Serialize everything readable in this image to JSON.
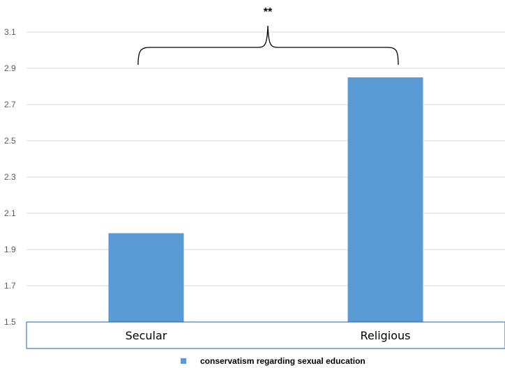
{
  "chart_data": {
    "type": "bar",
    "categories": [
      "Secular",
      "Religious"
    ],
    "series": [
      {
        "name": "conservatism regarding sexual education",
        "values": [
          1.99,
          2.85
        ],
        "color": "#5b9bd5"
      }
    ],
    "ylim": [
      1.5,
      3.1
    ],
    "yticks": [
      "1.5",
      "1.7",
      "1.9",
      "2.1",
      "2.3",
      "2.5",
      "2.7",
      "2.9",
      "3.1"
    ],
    "grid": true,
    "legend_position": "bottom",
    "annotation": "**"
  }
}
